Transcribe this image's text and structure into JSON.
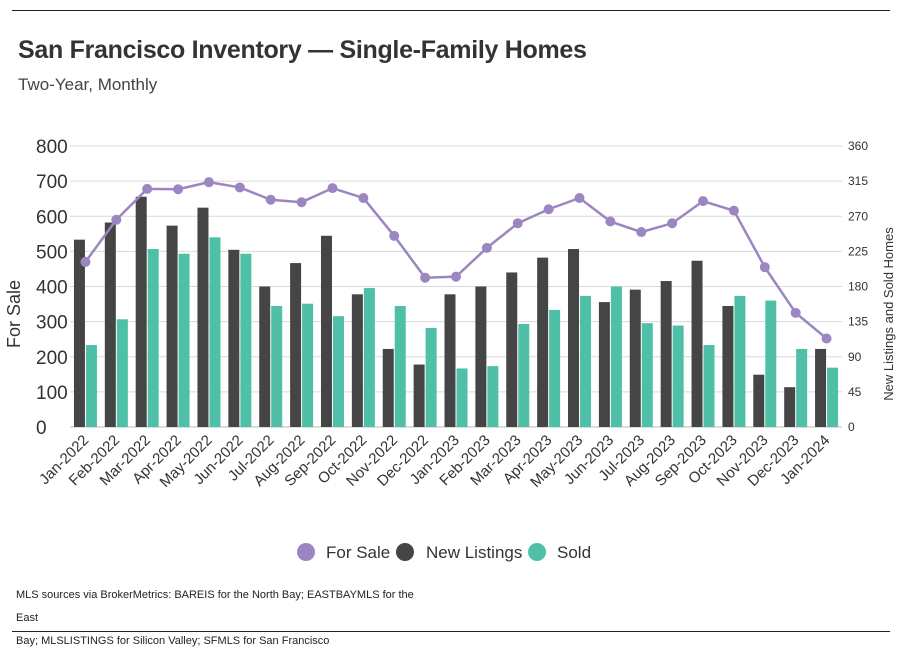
{
  "title": "San Francisco Inventory — Single-Family Homes",
  "subtitle": "Two-Year, Monthly",
  "source_line1": "MLS sources via BrokerMetrics: BAREIS for the North Bay; EASTBAYMLS for the East",
  "source_line2": "Bay; MLSLISTINGS for Silicon Valley; SFMLS for San Francisco",
  "colors": {
    "for_sale": "#9b86c2",
    "new_listings": "#454545",
    "sold": "#4fbfa8"
  },
  "chart_data": {
    "type": "bar+line",
    "categories": [
      "Jan-2022",
      "Feb-2022",
      "Mar-2022",
      "Apr-2022",
      "May-2022",
      "Jun-2022",
      "Jul-2022",
      "Aug-2022",
      "Sep-2022",
      "Oct-2022",
      "Nov-2022",
      "Dec-2022",
      "Jan-2023",
      "Feb-2023",
      "Mar-2023",
      "Apr-2023",
      "May-2023",
      "Jun-2023",
      "Jul-2023",
      "Aug-2023",
      "Sep-2023",
      "Oct-2023",
      "Nov-2023",
      "Dec-2023",
      "Jan-2024"
    ],
    "ylabel_left": "For Sale",
    "ylabel_right": "New Listings and Sold Homes",
    "ylim_left": [
      0,
      800
    ],
    "yticks_left": [
      0,
      100,
      200,
      300,
      400,
      500,
      600,
      700,
      800
    ],
    "ylim_right": [
      0,
      360
    ],
    "yticks_right": [
      0,
      45,
      90,
      135,
      180,
      225,
      270,
      315,
      360
    ],
    "grid": true,
    "legend_position": "bottom",
    "series": [
      {
        "name": "For Sale",
        "type": "line",
        "axis": "left",
        "values": [
          470,
          590,
          678,
          677,
          697,
          682,
          647,
          640,
          680,
          652,
          544,
          425,
          428,
          510,
          580,
          620,
          652,
          585,
          555,
          580,
          643,
          616,
          455,
          325,
          252
        ]
      },
      {
        "name": "New Listings",
        "type": "bar",
        "axis": "right",
        "values": [
          240,
          262,
          295,
          258,
          281,
          227,
          180,
          210,
          245,
          170,
          100,
          80,
          170,
          180,
          198,
          217,
          228,
          160,
          176,
          187,
          213,
          155,
          67,
          51,
          100
        ]
      },
      {
        "name": "Sold",
        "type": "bar",
        "axis": "right",
        "values": [
          105,
          138,
          228,
          222,
          243,
          222,
          155,
          158,
          142,
          178,
          155,
          127,
          75,
          78,
          132,
          150,
          168,
          180,
          133,
          130,
          105,
          168,
          162,
          100,
          76
        ]
      }
    ]
  }
}
